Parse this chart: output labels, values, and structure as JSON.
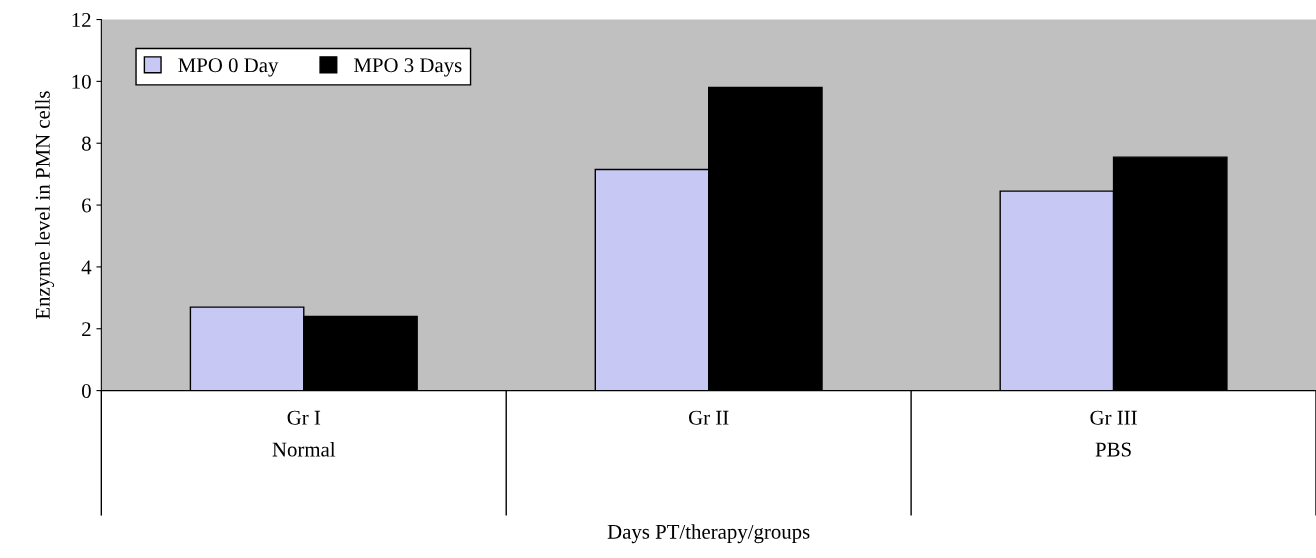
{
  "chart_data": {
    "type": "bar",
    "categories": [
      "Gr I\nNormal",
      "Gr II",
      "Gr III\nPBS"
    ],
    "series": [
      {
        "name": "MPO 0 Day",
        "color": "#c8c8f4",
        "values": [
          2.7,
          7.15,
          6.45
        ]
      },
      {
        "name": "MPO 3 Days",
        "color": "#000000",
        "values": [
          2.4,
          9.8,
          7.55
        ]
      }
    ],
    "xlabel": "Days PT/therapy/groups",
    "ylabel": "Enzyme level in PMN cells",
    "ylim": [
      0,
      12
    ],
    "yticks": [
      0,
      2,
      4,
      6,
      8,
      10,
      12
    ],
    "grid": false,
    "legend": "top left"
  }
}
